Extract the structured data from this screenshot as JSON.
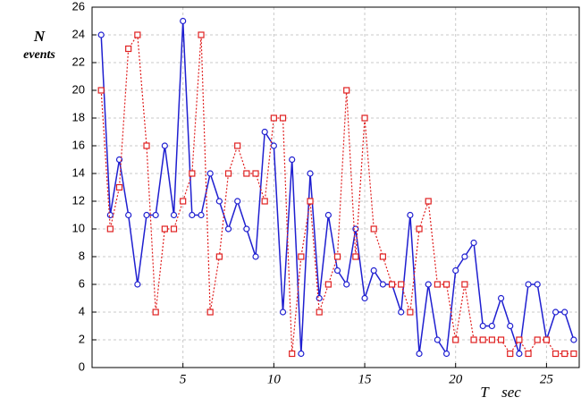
{
  "chart_data": {
    "type": "line",
    "y_label": "N",
    "y_label_sub": "events",
    "x_label": "T",
    "x_label_unit": "sec",
    "x": [
      0.5,
      1,
      1.5,
      2,
      2.5,
      3,
      3.5,
      4,
      4.5,
      5,
      5.5,
      6,
      6.5,
      7,
      7.5,
      8,
      8.5,
      9,
      9.5,
      10,
      10.5,
      11,
      11.5,
      12,
      12.5,
      13,
      13.5,
      14,
      14.5,
      15,
      15.5,
      16,
      16.5,
      17,
      17.5,
      18,
      18.5,
      19,
      19.5,
      20,
      20.5,
      21,
      21.5,
      22,
      22.5,
      23,
      23.5,
      24,
      24.5,
      25,
      25.5,
      26,
      26.5
    ],
    "series": [
      {
        "color": "#1f1fd0",
        "line_style": "solid",
        "marker": "circle",
        "values": [
          24,
          11,
          15,
          11,
          6,
          11,
          11,
          16,
          11,
          25,
          11,
          11,
          14,
          12,
          10,
          12,
          10,
          8,
          17,
          16,
          4,
          15,
          1,
          14,
          5,
          11,
          7,
          6,
          10,
          5,
          7,
          6,
          6,
          4,
          11,
          1,
          6,
          2,
          1,
          7,
          8,
          9,
          3,
          3,
          5,
          3,
          1,
          6,
          6,
          2,
          4,
          4,
          2
        ]
      },
      {
        "color": "#e02020",
        "line_style": "dotted",
        "marker": "square",
        "values": [
          20,
          10,
          13,
          23,
          24,
          16,
          4,
          10,
          10,
          12,
          14,
          24,
          4,
          8,
          14,
          16,
          14,
          14,
          12,
          18,
          18,
          1,
          8,
          12,
          4,
          6,
          8,
          20,
          8,
          18,
          10,
          8,
          6,
          6,
          4,
          10,
          12,
          6,
          6,
          2,
          6,
          2,
          2,
          2,
          2,
          1,
          2,
          1,
          2,
          2,
          1,
          1,
          1
        ]
      }
    ],
    "xlim": [
      0,
      26.8
    ],
    "ylim": [
      0,
      26
    ],
    "xticks": [
      5,
      10,
      15,
      20,
      25
    ],
    "yticks": [
      0,
      2,
      4,
      6,
      8,
      10,
      12,
      14,
      16,
      18,
      20,
      22,
      24,
      26
    ],
    "grid": true
  }
}
